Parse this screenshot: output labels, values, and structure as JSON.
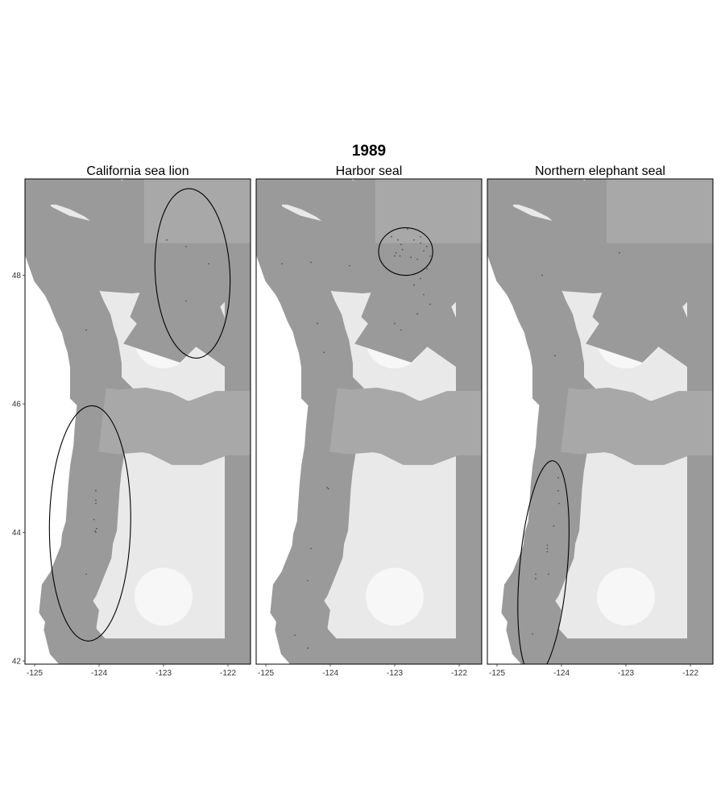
{
  "title": "1989",
  "colors": {
    "land": "#e9e9e9",
    "outline": "#000000",
    "coast": "#9a9a9a"
  },
  "axes": {
    "x_ticks": [
      -125,
      -124,
      -123,
      -122
    ],
    "x_tick_labels": [
      "-125",
      "-124",
      "-123",
      "-122"
    ],
    "y_ticks": [
      42,
      44,
      46,
      48
    ],
    "y_tick_labels": [
      "42",
      "44",
      "46",
      "48"
    ],
    "xlim": [
      -125.15,
      -121.65
    ],
    "ylim": [
      41.95,
      49.5
    ]
  },
  "panels": [
    {
      "name": "California sea lion",
      "ellipses": [
        {
          "center": [
            -122.55,
            48.03
          ],
          "rx_deg": 0.58,
          "ry_deg": 1.32,
          "rot": -3
        },
        {
          "center": [
            -124.14,
            44.14
          ],
          "rx_deg": 0.63,
          "ry_deg": 1.83,
          "rot": 1
        }
      ],
      "points": [
        [
          -124.2,
          47.15
        ],
        [
          -122.95,
          48.55
        ],
        [
          -122.65,
          48.45
        ],
        [
          -122.3,
          48.18
        ],
        [
          -122.65,
          47.6
        ],
        [
          -124.05,
          44.65
        ],
        [
          -124.05,
          44.5
        ],
        [
          -124.05,
          44.45
        ],
        [
          -124.08,
          44.2
        ],
        [
          -124.06,
          44.02
        ],
        [
          -124.05,
          44.0
        ],
        [
          -124.04,
          44.06
        ],
        [
          -124.2,
          43.35
        ]
      ]
    },
    {
      "name": "Harbor seal",
      "ellipses": [
        {
          "center": [
            -122.83,
            48.37
          ],
          "rx_deg": 0.42,
          "ry_deg": 0.37,
          "rot": 0
        }
      ],
      "points": [
        [
          -124.75,
          48.18
        ],
        [
          -124.3,
          48.2
        ],
        [
          -123.7,
          48.15
        ],
        [
          -123.05,
          48.6
        ],
        [
          -122.95,
          48.55
        ],
        [
          -122.9,
          48.48
        ],
        [
          -122.88,
          48.4
        ],
        [
          -122.98,
          48.35
        ],
        [
          -123.0,
          48.3
        ],
        [
          -122.92,
          48.3
        ],
        [
          -122.7,
          48.55
        ],
        [
          -122.6,
          48.5
        ],
        [
          -122.5,
          48.45
        ],
        [
          -122.55,
          48.38
        ],
        [
          -122.45,
          48.3
        ],
        [
          -122.65,
          48.25
        ],
        [
          -122.75,
          48.28
        ],
        [
          -122.6,
          48.6
        ],
        [
          -122.8,
          48.72
        ],
        [
          -122.5,
          48.1
        ],
        [
          -122.6,
          47.95
        ],
        [
          -122.7,
          47.85
        ],
        [
          -122.55,
          47.7
        ],
        [
          -122.45,
          47.55
        ],
        [
          -122.65,
          47.4
        ],
        [
          -122.9,
          47.15
        ],
        [
          -123.0,
          47.25
        ],
        [
          -124.2,
          47.25
        ],
        [
          -124.1,
          46.8
        ],
        [
          -124.05,
          44.7
        ],
        [
          -124.03,
          44.68
        ],
        [
          -124.3,
          43.75
        ],
        [
          -124.35,
          43.25
        ],
        [
          -124.55,
          42.4
        ],
        [
          -124.35,
          42.2
        ]
      ]
    },
    {
      "name": "Northern elephant seal",
      "ellipses": [
        {
          "center": [
            -124.28,
            43.43
          ],
          "rx_deg": 0.37,
          "ry_deg": 1.69,
          "rot": 5
        }
      ],
      "points": [
        [
          -124.3,
          48.0
        ],
        [
          -123.1,
          48.35
        ],
        [
          -124.1,
          46.75
        ],
        [
          -124.05,
          44.85
        ],
        [
          -124.05,
          44.65
        ],
        [
          -124.04,
          44.45
        ],
        [
          -124.12,
          44.1
        ],
        [
          -124.22,
          43.8
        ],
        [
          -124.22,
          43.75
        ],
        [
          -124.22,
          43.7
        ],
        [
          -124.4,
          43.35
        ],
        [
          -124.2,
          43.35
        ],
        [
          -124.4,
          43.28
        ],
        [
          -124.45,
          42.42
        ]
      ]
    }
  ]
}
